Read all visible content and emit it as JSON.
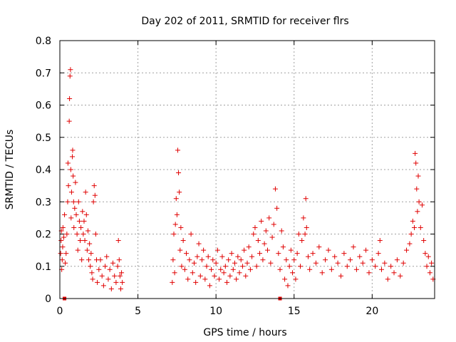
{
  "chart_data": {
    "type": "scatter",
    "title": "Day 202 of 2011, SRMTID for receiver flrs",
    "xlabel": "GPS time / hours",
    "ylabel": "SRMTID / TECUs",
    "xlim": [
      0,
      24
    ],
    "ylim": [
      0,
      0.8
    ],
    "xticks": [
      0,
      5,
      10,
      15,
      20
    ],
    "xtick_labels": [
      "0",
      "5",
      "10",
      "15",
      "20"
    ],
    "yticks": [
      0,
      0.1,
      0.2,
      0.3,
      0.4,
      0.5,
      0.6,
      0.7,
      0.8
    ],
    "ytick_labels": [
      "0",
      "0.1",
      "0.2",
      "0.3",
      "0.4",
      "0.5",
      "0.6",
      "0.7",
      "0.8"
    ],
    "grid": true,
    "marker": "+",
    "color": "#e00000",
    "series": [
      {
        "name": "SRMTID",
        "points": [
          [
            0.05,
            0.14
          ],
          [
            0.08,
            0.18
          ],
          [
            0.1,
            0.21
          ],
          [
            0.12,
            0.09
          ],
          [
            0.15,
            0.12
          ],
          [
            0.18,
            0.16
          ],
          [
            0.2,
            0.22
          ],
          [
            0.25,
            0.19
          ],
          [
            0.3,
            0.26
          ],
          [
            0.35,
            0.11
          ],
          [
            0.4,
            0.14
          ],
          [
            0.45,
            0.2
          ],
          [
            0.5,
            0.3
          ],
          [
            0.52,
            0.42
          ],
          [
            0.55,
            0.35
          ],
          [
            0.6,
            0.55
          ],
          [
            0.62,
            0.62
          ],
          [
            0.65,
            0.69
          ],
          [
            0.68,
            0.71
          ],
          [
            0.7,
            0.4
          ],
          [
            0.72,
            0.25
          ],
          [
            0.75,
            0.33
          ],
          [
            0.8,
            0.44
          ],
          [
            0.82,
            0.46
          ],
          [
            0.85,
            0.38
          ],
          [
            0.88,
            0.3
          ],
          [
            0.9,
            0.22
          ],
          [
            0.95,
            0.28
          ],
          [
            1.0,
            0.36
          ],
          [
            1.05,
            0.26
          ],
          [
            1.1,
            0.2
          ],
          [
            1.15,
            0.15
          ],
          [
            1.2,
            0.3
          ],
          [
            1.25,
            0.24
          ],
          [
            1.3,
            0.18
          ],
          [
            1.35,
            0.22
          ],
          [
            1.4,
            0.12
          ],
          [
            1.45,
            0.27
          ],
          [
            1.5,
            0.2
          ],
          [
            1.55,
            0.24
          ],
          [
            1.6,
            0.18
          ],
          [
            1.65,
            0.33
          ],
          [
            1.7,
            0.26
          ],
          [
            1.75,
            0.15
          ],
          [
            1.8,
            0.21
          ],
          [
            1.85,
            0.12
          ],
          [
            1.9,
            0.17
          ],
          [
            1.95,
            0.1
          ],
          [
            2.0,
            0.14
          ],
          [
            2.05,
            0.08
          ],
          [
            2.1,
            0.06
          ],
          [
            2.15,
            0.3
          ],
          [
            2.2,
            0.35
          ],
          [
            2.25,
            0.32
          ],
          [
            2.3,
            0.2
          ],
          [
            2.35,
            0.12
          ],
          [
            2.4,
            0.05
          ],
          [
            2.5,
            0.09
          ],
          [
            2.6,
            0.12
          ],
          [
            2.7,
            0.07
          ],
          [
            2.8,
            0.04
          ],
          [
            2.9,
            0.1
          ],
          [
            3.0,
            0.13
          ],
          [
            3.1,
            0.06
          ],
          [
            3.2,
            0.09
          ],
          [
            3.3,
            0.03
          ],
          [
            3.4,
            0.11
          ],
          [
            3.5,
            0.07
          ],
          [
            3.6,
            0.05
          ],
          [
            3.7,
            0.1
          ],
          [
            3.75,
            0.18
          ],
          [
            3.8,
            0.12
          ],
          [
            3.85,
            0.07
          ],
          [
            3.9,
            0.03
          ],
          [
            3.95,
            0.08
          ],
          [
            4.0,
            0.05
          ],
          [
            7.2,
            0.05
          ],
          [
            7.25,
            0.12
          ],
          [
            7.3,
            0.2
          ],
          [
            7.35,
            0.08
          ],
          [
            7.4,
            0.23
          ],
          [
            7.45,
            0.31
          ],
          [
            7.5,
            0.26
          ],
          [
            7.55,
            0.46
          ],
          [
            7.6,
            0.39
          ],
          [
            7.65,
            0.33
          ],
          [
            7.7,
            0.15
          ],
          [
            7.75,
            0.22
          ],
          [
            7.8,
            0.1
          ],
          [
            7.9,
            0.18
          ],
          [
            8.0,
            0.09
          ],
          [
            8.1,
            0.14
          ],
          [
            8.2,
            0.06
          ],
          [
            8.3,
            0.12
          ],
          [
            8.4,
            0.2
          ],
          [
            8.5,
            0.08
          ],
          [
            8.6,
            0.11
          ],
          [
            8.7,
            0.05
          ],
          [
            8.8,
            0.13
          ],
          [
            8.9,
            0.17
          ],
          [
            9.0,
            0.07
          ],
          [
            9.1,
            0.12
          ],
          [
            9.2,
            0.15
          ],
          [
            9.3,
            0.06
          ],
          [
            9.4,
            0.1
          ],
          [
            9.5,
            0.13
          ],
          [
            9.6,
            0.04
          ],
          [
            9.7,
            0.09
          ],
          [
            9.8,
            0.12
          ],
          [
            9.9,
            0.07
          ],
          [
            10.0,
            0.11
          ],
          [
            10.1,
            0.15
          ],
          [
            10.2,
            0.06
          ],
          [
            10.3,
            0.09
          ],
          [
            10.4,
            0.13
          ],
          [
            10.5,
            0.08
          ],
          [
            10.6,
            0.1
          ],
          [
            10.7,
            0.05
          ],
          [
            10.8,
            0.12
          ],
          [
            10.9,
            0.07
          ],
          [
            11.0,
            0.14
          ],
          [
            11.1,
            0.09
          ],
          [
            11.2,
            0.11
          ],
          [
            11.3,
            0.06
          ],
          [
            11.4,
            0.13
          ],
          [
            11.5,
            0.08
          ],
          [
            11.6,
            0.12
          ],
          [
            11.7,
            0.1
          ],
          [
            11.8,
            0.15
          ],
          [
            11.9,
            0.07
          ],
          [
            12.0,
            0.11
          ],
          [
            12.1,
            0.16
          ],
          [
            12.2,
            0.09
          ],
          [
            12.3,
            0.13
          ],
          [
            12.4,
            0.2
          ],
          [
            12.5,
            0.22
          ],
          [
            12.6,
            0.1
          ],
          [
            12.7,
            0.18
          ],
          [
            12.8,
            0.14
          ],
          [
            12.9,
            0.24
          ],
          [
            13.0,
            0.12
          ],
          [
            13.1,
            0.17
          ],
          [
            13.2,
            0.21
          ],
          [
            13.3,
            0.15
          ],
          [
            13.4,
            0.25
          ],
          [
            13.5,
            0.11
          ],
          [
            13.6,
            0.19
          ],
          [
            13.7,
            0.23
          ],
          [
            13.8,
            0.34
          ],
          [
            13.9,
            0.28
          ],
          [
            14.0,
            0.14
          ],
          [
            14.1,
            0.09
          ],
          [
            14.2,
            0.21
          ],
          [
            14.3,
            0.16
          ],
          [
            14.4,
            0.06
          ],
          [
            14.5,
            0.12
          ],
          [
            14.6,
            0.04
          ],
          [
            14.7,
            0.1
          ],
          [
            14.8,
            0.15
          ],
          [
            14.9,
            0.08
          ],
          [
            15.0,
            0.12
          ],
          [
            15.1,
            0.06
          ],
          [
            15.2,
            0.14
          ],
          [
            15.3,
            0.2
          ],
          [
            15.4,
            0.1
          ],
          [
            15.5,
            0.18
          ],
          [
            15.6,
            0.25
          ],
          [
            15.7,
            0.2
          ],
          [
            15.75,
            0.31
          ],
          [
            15.8,
            0.22
          ],
          [
            15.9,
            0.13
          ],
          [
            16.0,
            0.09
          ],
          [
            16.2,
            0.14
          ],
          [
            16.4,
            0.11
          ],
          [
            16.6,
            0.16
          ],
          [
            16.8,
            0.08
          ],
          [
            17.0,
            0.12
          ],
          [
            17.2,
            0.15
          ],
          [
            17.4,
            0.09
          ],
          [
            17.6,
            0.13
          ],
          [
            17.8,
            0.11
          ],
          [
            18.0,
            0.07
          ],
          [
            18.2,
            0.14
          ],
          [
            18.4,
            0.1
          ],
          [
            18.6,
            0.12
          ],
          [
            18.8,
            0.16
          ],
          [
            19.0,
            0.09
          ],
          [
            19.2,
            0.13
          ],
          [
            19.4,
            0.11
          ],
          [
            19.6,
            0.15
          ],
          [
            19.8,
            0.08
          ],
          [
            20.0,
            0.12
          ],
          [
            20.2,
            0.1
          ],
          [
            20.4,
            0.14
          ],
          [
            20.5,
            0.18
          ],
          [
            20.6,
            0.09
          ],
          [
            20.8,
            0.11
          ],
          [
            21.0,
            0.06
          ],
          [
            21.2,
            0.1
          ],
          [
            21.4,
            0.08
          ],
          [
            21.6,
            0.12
          ],
          [
            21.8,
            0.07
          ],
          [
            22.0,
            0.11
          ],
          [
            22.2,
            0.15
          ],
          [
            22.4,
            0.17
          ],
          [
            22.5,
            0.2
          ],
          [
            22.6,
            0.24
          ],
          [
            22.7,
            0.22
          ],
          [
            22.75,
            0.45
          ],
          [
            22.8,
            0.42
          ],
          [
            22.85,
            0.34
          ],
          [
            22.9,
            0.27
          ],
          [
            22.95,
            0.38
          ],
          [
            23.0,
            0.3
          ],
          [
            23.1,
            0.22
          ],
          [
            23.2,
            0.29
          ],
          [
            23.3,
            0.18
          ],
          [
            23.4,
            0.14
          ],
          [
            23.5,
            0.1
          ],
          [
            23.6,
            0.13
          ],
          [
            23.7,
            0.08
          ],
          [
            23.8,
            0.11
          ],
          [
            23.9,
            0.06
          ]
        ]
      }
    ],
    "zero_markers": [
      0.3,
      14.1
    ]
  }
}
